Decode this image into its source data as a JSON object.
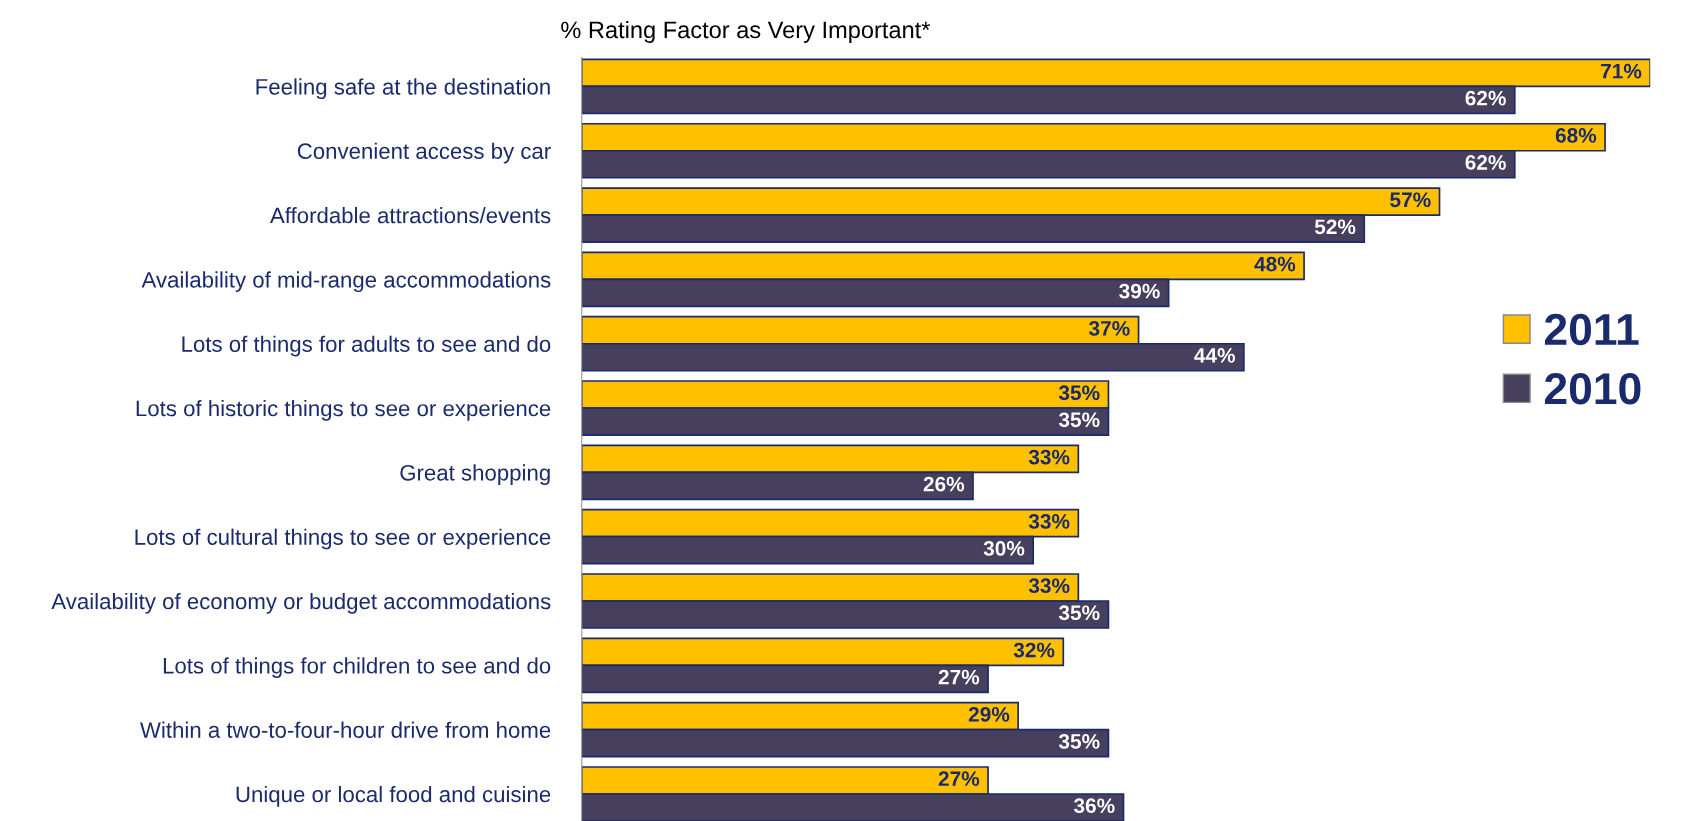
{
  "chart_data": {
    "type": "bar",
    "orientation": "horizontal",
    "title": "% Rating Factor as Very Important*",
    "categories": [
      "Feeling safe at the destination",
      "Convenient access by car",
      "Affordable attractions/events",
      "Availability of mid-range accommodations",
      "Lots of things for adults to see and do",
      "Lots of historic things to see or experience",
      "Great shopping",
      "Lots of cultural things to see or experience",
      "Availability of economy or budget accommodations",
      "Lots of things for children to see and do",
      "Within a two-to-four-hour drive from home",
      "Unique or local food and cuisine"
    ],
    "series": [
      {
        "name": "2011",
        "color": "#ffc000",
        "values": [
          71,
          68,
          57,
          48,
          37,
          35,
          33,
          33,
          33,
          32,
          29,
          27
        ],
        "value_labels": [
          "71%",
          "68%",
          "57%",
          "48%",
          "37%",
          "35%",
          "33%",
          "33%",
          "33%",
          "32%",
          "29%",
          "27%"
        ]
      },
      {
        "name": "2010",
        "color": "#46405e",
        "values": [
          62,
          62,
          52,
          39,
          44,
          35,
          26,
          30,
          35,
          27,
          35,
          36
        ],
        "value_labels": [
          "62%",
          "62%",
          "52%",
          "39%",
          "44%",
          "35%",
          "26%",
          "30%",
          "35%",
          "27%",
          "35%",
          "36%"
        ]
      }
    ],
    "legend": "right",
    "grid": false
  }
}
